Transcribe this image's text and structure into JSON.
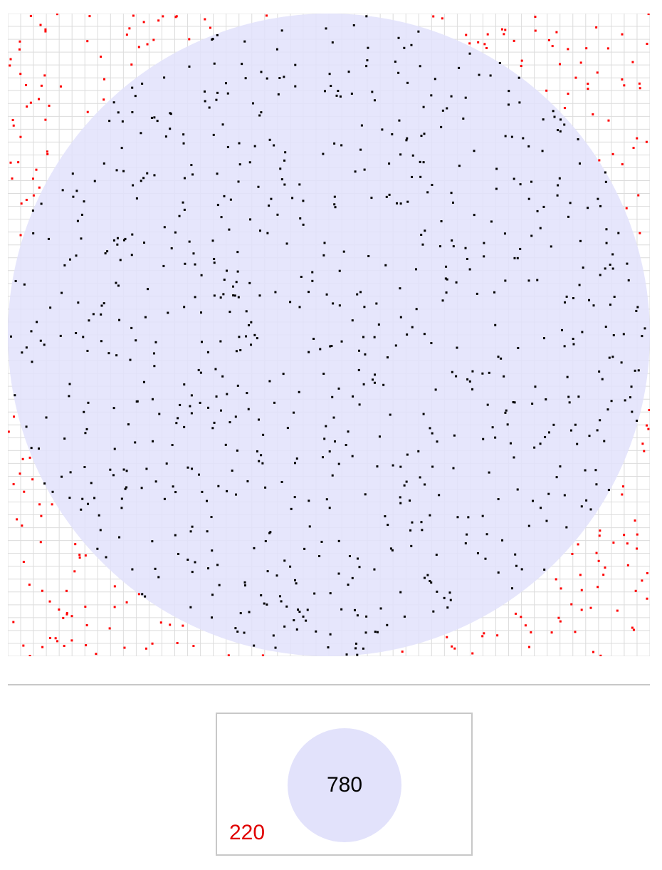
{
  "simulation": {
    "total_points": 1000,
    "points_inside": 780,
    "points_outside": 220,
    "grid_divisions": 50,
    "colors": {
      "background": "#ffffff",
      "grid_line": "#dcdcdc",
      "circle_fill": "#e2e2fb",
      "point_inside": "#000000",
      "point_outside": "#ff0000"
    }
  },
  "counters": {
    "inside_label": "780",
    "outside_label": "220",
    "colors": {
      "disc_fill": "#e2e2fb",
      "inside_text": "#000000",
      "outside_text": "#e00000"
    }
  },
  "icons": {
    "inside_indicator": "circle-disc"
  }
}
